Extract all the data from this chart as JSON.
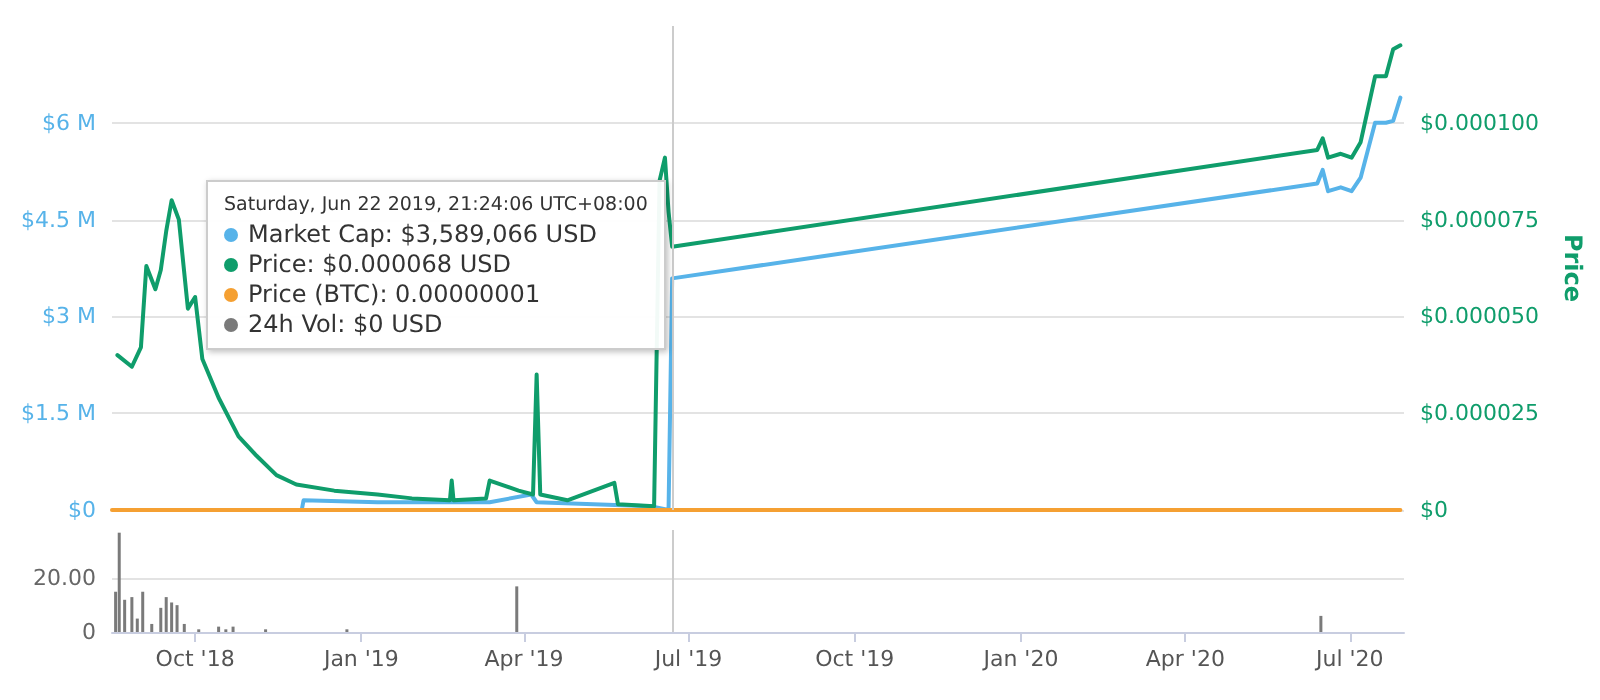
{
  "chart_data": [
    {
      "type": "line",
      "xlim": [
        "2018-08-16",
        "2020-07-31"
      ],
      "ylim": [
        0,
        7500000
      ],
      "yticks": [
        {
          "value": 0,
          "label": "$0"
        },
        {
          "value": 1500000,
          "label": "$1.5 M"
        },
        {
          "value": 3000000,
          "label": "$3 M"
        },
        {
          "value": 4500000,
          "label": "$4.5 M"
        },
        {
          "value": 6000000,
          "label": "$6 M"
        }
      ],
      "y2lim": [
        0,
        0.000125
      ],
      "y2ticks": [
        {
          "value": 0,
          "label": "$0"
        },
        {
          "value": 2.5e-05,
          "label": "$0.000025"
        },
        {
          "value": 5e-05,
          "label": "$0.000050"
        },
        {
          "value": 7.5e-05,
          "label": "$0.000075"
        },
        {
          "value": 0.0001,
          "label": "$0.000100"
        }
      ],
      "y2label": "Price",
      "grid": "y",
      "tick_labels": "y",
      "marker": "none",
      "line_style": "solid",
      "series": [
        {
          "color": "#57b3e9",
          "x": [
            "2018-10-14",
            "2018-11-29",
            "2018-11-30",
            "2019-01-10",
            "2019-03-13",
            "2019-04-05",
            "2019-04-08",
            "2019-06-10",
            "2019-06-20",
            "2019-06-22",
            "2020-06-13",
            "2020-06-16",
            "2020-06-19",
            "2020-06-26",
            "2020-07-02",
            "2020-07-07",
            "2020-07-15",
            "2020-07-21",
            "2020-07-25",
            "2020-07-29"
          ],
          "values": [
            0,
            0,
            150000,
            120000,
            120000,
            240000,
            120000,
            60000,
            0,
            3589066,
            5060000,
            5270000,
            4940000,
            5000000,
            4940000,
            5150000,
            6000000,
            6000000,
            6030000,
            6390000
          ]
        },
        {
          "color": "#0f9d6b",
          "axis": "y2",
          "x": [
            "2018-08-19",
            "2018-08-27",
            "2018-09-01",
            "2018-09-04",
            "2018-09-09",
            "2018-09-12",
            "2018-09-15",
            "2018-09-18",
            "2018-09-22",
            "2018-09-27",
            "2018-10-01",
            "2018-10-05",
            "2018-10-14",
            "2018-10-25",
            "2018-11-04",
            "2018-11-15",
            "2018-11-26",
            "2018-12-17",
            "2019-01-10",
            "2019-01-29",
            "2019-02-19",
            "2019-02-20",
            "2019-02-21",
            "2019-03-11",
            "2019-03-13",
            "2019-03-29",
            "2019-04-06",
            "2019-04-08",
            "2019-04-10",
            "2019-04-25",
            "2019-05-21",
            "2019-05-23",
            "2019-06-12",
            "2019-06-15",
            "2019-06-18",
            "2019-06-20",
            "2019-06-22",
            "2020-06-13",
            "2020-06-16",
            "2020-06-19",
            "2020-06-26",
            "2020-07-02",
            "2020-07-07",
            "2020-07-15",
            "2020-07-21",
            "2020-07-25",
            "2020-07-29"
          ],
          "values": [
            4e-05,
            3.7e-05,
            4.2e-05,
            6.3e-05,
            5.7e-05,
            6.2e-05,
            7.2e-05,
            8e-05,
            7.5e-05,
            5.2e-05,
            5.5e-05,
            3.9e-05,
            2.9e-05,
            1.9e-05,
            1.4e-05,
            9e-06,
            6.6e-06,
            5e-06,
            4e-06,
            3e-06,
            2.5e-06,
            7.6e-06,
            2.5e-06,
            3e-06,
            7.6e-06,
            5e-06,
            4e-06,
            3.5e-05,
            4e-06,
            2.5e-06,
            7e-06,
            1.5e-06,
            1e-06,
            8.5e-05,
            9.1e-05,
            7.7e-05,
            6.8e-05,
            9.3e-05,
            9.6e-05,
            9.1e-05,
            9.2e-05,
            9.1e-05,
            9.5e-05,
            0.000112,
            0.000112,
            0.000119,
            0.00012
          ]
        },
        {
          "color": "#f5a032",
          "axis": "y2",
          "x": [
            "2018-08-16",
            "2020-07-29"
          ],
          "values": [
            0,
            0
          ]
        }
      ],
      "ref_lines": [
        {
          "axis": "x",
          "value": "2019-06-22",
          "color": "#cccccc"
        }
      ],
      "annotations": [
        "Saturday, Jun 22 2019, 21:24:06 UTC+08:00",
        "Market Cap: $3,589,066 USD",
        "Price: $0.000068 USD",
        "Price (BTC): 0.00000001",
        "24h Vol: $0 USD"
      ]
    },
    {
      "type": "bar",
      "xlim": [
        "2018-08-16",
        "2020-07-31"
      ],
      "xticks": [
        {
          "value": "2018-10-01",
          "label": "Oct '18"
        },
        {
          "value": "2019-01-01",
          "label": "Jan '19"
        },
        {
          "value": "2019-04-01",
          "label": "Apr '19"
        },
        {
          "value": "2019-07-01",
          "label": "Jul '19"
        },
        {
          "value": "2019-10-01",
          "label": "Oct '19"
        },
        {
          "value": "2020-01-01",
          "label": "Jan '20"
        },
        {
          "value": "2020-04-01",
          "label": "Apr '20"
        },
        {
          "value": "2020-07-01",
          "label": "Jul '20"
        }
      ],
      "ylim": [
        0,
        38
      ],
      "yticks": [
        0,
        {
          "value": 20,
          "label": "20.00"
        }
      ],
      "grid": "y",
      "series": [
        {
          "color": "#7a7a7a",
          "x": [
            "2018-08-18",
            "2018-08-20",
            "2018-08-23",
            "2018-08-27",
            "2018-08-30",
            "2018-09-02",
            "2018-09-07",
            "2018-09-12",
            "2018-09-15",
            "2018-09-18",
            "2018-09-21",
            "2018-09-25",
            "2018-10-03",
            "2018-10-14",
            "2018-10-18",
            "2018-10-22",
            "2018-11-09",
            "2018-12-24",
            "2019-03-28",
            "2020-06-15"
          ],
          "values": [
            15,
            37,
            12,
            13,
            5,
            15,
            3,
            9,
            13,
            11,
            10,
            3,
            1,
            2,
            1,
            2,
            1,
            1,
            17,
            6
          ]
        }
      ],
      "ref_lines": [
        {
          "axis": "x",
          "value": "2019-06-22",
          "color": "#cccccc"
        }
      ]
    }
  ]
}
